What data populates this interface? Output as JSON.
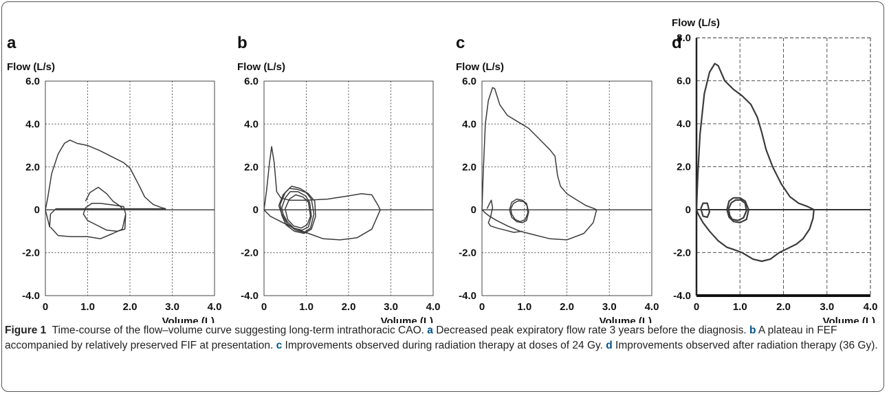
{
  "colors": {
    "line": "#3a3a3a",
    "grid": "#555555",
    "caption_label": "#00558c"
  },
  "chart_data": [
    {
      "type": "line",
      "panel_label": "a",
      "ylabel": "Flow (L/s)",
      "xlabel": "Volume (L)",
      "xlim": [
        0,
        4
      ],
      "ylim": [
        -4,
        6
      ],
      "x_ticks": [
        "0",
        "1.0",
        "2.0",
        "3.0",
        "4.0"
      ],
      "y_ticks": [
        "6.0",
        "4.0",
        "2.0",
        "0",
        "-2.0",
        "-4.0"
      ],
      "grid": "dotted",
      "series": [
        {
          "x": [
            0,
            0.05,
            0.15,
            0.3,
            0.45,
            0.58,
            0.75,
            1.0,
            1.3,
            1.6,
            1.85,
            2.0,
            2.2,
            2.35,
            2.55,
            2.75,
            2.85
          ],
          "y": [
            0,
            0.5,
            1.7,
            2.6,
            3.1,
            3.25,
            3.1,
            3.0,
            2.75,
            2.45,
            2.2,
            1.95,
            1.2,
            0.6,
            0.25,
            0.1,
            0.05
          ]
        },
        {
          "x": [
            2.85,
            2.5,
            2.2,
            2.0,
            1.9,
            1.75,
            1.5,
            1.2,
            0.8,
            0.4,
            0.25,
            0.12,
            0.1,
            0.05,
            0
          ],
          "y": [
            0.05,
            0.05,
            0.05,
            0.05,
            0.05,
            0.05,
            0.05,
            0.05,
            0.05,
            0.05,
            0.05,
            -0.2,
            -0.8,
            -0.4,
            0
          ]
        },
        {
          "x": [
            0.12,
            0.3,
            0.6,
            1.0,
            1.3,
            1.6,
            1.82,
            1.9
          ],
          "y": [
            -0.8,
            -1.2,
            -1.25,
            -1.25,
            -1.35,
            -1.1,
            -0.9,
            -0.2
          ]
        },
        {
          "x": [
            0.95,
            1.1,
            1.3,
            1.5,
            1.7,
            1.85,
            1.9,
            1.88,
            1.7,
            1.45,
            1.2,
            1.0,
            0.9,
            0.95
          ],
          "y": [
            0.1,
            0.3,
            0.3,
            0.25,
            0.2,
            0.15,
            -0.2,
            -0.9,
            -1.0,
            -0.95,
            -0.7,
            -0.5,
            -0.2,
            0.1
          ]
        },
        {
          "x": [
            0.95,
            1.05,
            1.25,
            1.45,
            1.6,
            1.75,
            1.85
          ],
          "y": [
            0.4,
            0.8,
            1.05,
            0.75,
            0.4,
            0.2,
            0
          ]
        }
      ]
    },
    {
      "type": "line",
      "panel_label": "b",
      "ylabel": "Flow (L/s)",
      "xlabel": "Volume (L)",
      "xlim": [
        0,
        4
      ],
      "ylim": [
        -4,
        6
      ],
      "x_ticks": [
        "0",
        "1.0",
        "2.0",
        "3.0",
        "4.0"
      ],
      "y_ticks": [
        "6.0",
        "4.0",
        "2.0",
        "0",
        "-2.0",
        "-4.0"
      ],
      "grid": "dotted",
      "series": [
        {
          "x": [
            0,
            0.06,
            0.13,
            0.18,
            0.24,
            0.3,
            0.4,
            0.6,
            1.0,
            1.5,
            2.0,
            2.3,
            2.55,
            2.7,
            2.75
          ],
          "y": [
            0,
            0.9,
            2.2,
            2.95,
            2.2,
            0.85,
            0.55,
            0.45,
            0.45,
            0.5,
            0.65,
            0.75,
            0.7,
            0.2,
            0
          ]
        },
        {
          "x": [
            2.75,
            2.55,
            2.2,
            1.8,
            1.4,
            1.05,
            0.7,
            0.4,
            0.15,
            0
          ],
          "y": [
            0,
            -0.9,
            -1.3,
            -1.4,
            -1.35,
            -1.1,
            -0.85,
            -0.55,
            -0.3,
            0
          ]
        },
        {
          "x": [
            0.35,
            0.45,
            0.6,
            0.8,
            1.0,
            1.12,
            1.18,
            1.1,
            0.95,
            0.75,
            0.55,
            0.42,
            0.35
          ],
          "y": [
            0.2,
            0.7,
            1.0,
            0.95,
            0.8,
            0.5,
            -0.2,
            -0.85,
            -1.05,
            -0.95,
            -0.65,
            -0.2,
            0.2
          ]
        },
        {
          "x": [
            0.42,
            0.5,
            0.62,
            0.8,
            0.98,
            1.08,
            1.12,
            1.05,
            0.9,
            0.7,
            0.55,
            0.45,
            0.42
          ],
          "y": [
            0.1,
            0.55,
            0.85,
            0.85,
            0.65,
            0.35,
            -0.3,
            -0.8,
            -0.95,
            -0.85,
            -0.55,
            -0.2,
            0.1
          ]
        },
        {
          "x": [
            0.38,
            0.5,
            0.65,
            0.85,
            1.05,
            1.2,
            1.22,
            1.12,
            0.95,
            0.72,
            0.52,
            0.42,
            0.38
          ],
          "y": [
            0.25,
            0.8,
            1.1,
            1.0,
            0.75,
            0.4,
            -0.3,
            -0.9,
            -1.1,
            -1.0,
            -0.7,
            -0.25,
            0.25
          ]
        },
        {
          "x": [
            0.5,
            0.6,
            0.75,
            0.92,
            1.05,
            1.1,
            1.02,
            0.88,
            0.7,
            0.56,
            0.5
          ],
          "y": [
            0.05,
            0.5,
            0.7,
            0.6,
            0.35,
            -0.3,
            -0.7,
            -0.85,
            -0.75,
            -0.45,
            0.05
          ]
        }
      ]
    },
    {
      "type": "line",
      "panel_label": "c",
      "ylabel": "Flow (L/s)",
      "xlabel": "Volume (L)",
      "xlim": [
        0,
        4
      ],
      "ylim": [
        -4,
        6
      ],
      "x_ticks": [
        "0",
        "1.0",
        "2.0",
        "3.0",
        "4.0"
      ],
      "y_ticks": [
        "6.0",
        "4.0",
        "2.0",
        "0",
        "-2.0",
        "-4.0"
      ],
      "grid": "dotted",
      "series": [
        {
          "x": [
            0,
            0.03,
            0.08,
            0.15,
            0.25,
            0.3,
            0.42,
            0.6,
            0.85,
            1.1,
            1.4,
            1.6,
            1.72,
            1.78,
            1.85,
            2.0,
            2.2,
            2.45,
            2.65,
            2.7
          ],
          "y": [
            0,
            1.8,
            4.0,
            5.1,
            5.7,
            5.65,
            4.9,
            4.4,
            4.1,
            3.8,
            3.2,
            2.8,
            2.5,
            1.6,
            1.1,
            0.75,
            0.5,
            0.2,
            0.05,
            0
          ]
        },
        {
          "x": [
            2.7,
            2.62,
            2.4,
            2.0,
            1.6,
            1.2,
            0.9,
            0.6,
            0.35,
            0.18,
            0.08,
            0.03,
            0
          ],
          "y": [
            0,
            -0.6,
            -1.1,
            -1.4,
            -1.35,
            -1.15,
            -1.0,
            -0.75,
            -0.5,
            -0.3,
            -0.15,
            -0.05,
            0
          ]
        },
        {
          "x": [
            0.12,
            0.18,
            0.22,
            0.25,
            0.2,
            0.15,
            0.2,
            0.35,
            0.55,
            0.75,
            0.95
          ],
          "y": [
            0.05,
            0.3,
            0.45,
            0.1,
            -0.35,
            -0.6,
            -0.75,
            -0.85,
            -0.95,
            -1.05,
            -1.0
          ]
        },
        {
          "x": [
            0.65,
            0.7,
            0.82,
            0.95,
            1.05,
            1.1,
            1.05,
            0.95,
            0.82,
            0.7,
            0.65
          ],
          "y": [
            0,
            0.35,
            0.5,
            0.45,
            0.3,
            -0.1,
            -0.5,
            -0.6,
            -0.55,
            -0.35,
            0
          ]
        },
        {
          "x": [
            0.68,
            0.74,
            0.86,
            0.98,
            1.06,
            1.08,
            1.02,
            0.9,
            0.78,
            0.7,
            0.68
          ],
          "y": [
            0.05,
            0.3,
            0.42,
            0.38,
            0.2,
            -0.15,
            -0.45,
            -0.55,
            -0.45,
            -0.2,
            0.05
          ]
        }
      ]
    },
    {
      "type": "line",
      "panel_label": "d",
      "ylabel": "Flow (L/s)",
      "xlabel": "Volume (L)",
      "xlim": [
        0,
        4
      ],
      "ylim": [
        -4,
        8
      ],
      "x_ticks": [
        "0",
        "1.0",
        "2.0",
        "3.0",
        "4.0"
      ],
      "y_ticks": [
        "8.0",
        "6.0",
        "4.0",
        "2.0",
        "0",
        "-2.0",
        "-4.0"
      ],
      "grid": "dashed",
      "series": [
        {
          "x": [
            0,
            0.03,
            0.08,
            0.18,
            0.3,
            0.42,
            0.5,
            0.65,
            0.85,
            1.05,
            1.25,
            1.4,
            1.5,
            1.6,
            1.75,
            1.95,
            2.15,
            2.35,
            2.55,
            2.65,
            2.7
          ],
          "y": [
            0,
            1.6,
            3.5,
            5.4,
            6.4,
            6.8,
            6.7,
            6.0,
            5.6,
            5.3,
            4.9,
            4.3,
            3.6,
            2.8,
            2.0,
            1.2,
            0.6,
            0.3,
            0.15,
            0.05,
            0
          ]
        },
        {
          "x": [
            2.7,
            2.68,
            2.6,
            2.45,
            2.3,
            2.1,
            1.9,
            1.7,
            1.5,
            1.3,
            1.05,
            0.85,
            0.7,
            0.5,
            0.3,
            0.15,
            0.05,
            0
          ],
          "y": [
            0,
            -0.4,
            -0.9,
            -1.35,
            -1.6,
            -1.8,
            -2.0,
            -2.3,
            -2.4,
            -2.3,
            -2.0,
            -1.85,
            -1.75,
            -1.45,
            -1.0,
            -0.6,
            -0.25,
            0
          ]
        },
        {
          "x": [
            0.1,
            0.15,
            0.25,
            0.3,
            0.25,
            0.15,
            0.1
          ],
          "y": [
            0.05,
            0.3,
            0.3,
            -0.1,
            -0.35,
            -0.3,
            0.05
          ]
        },
        {
          "x": [
            0.7,
            0.75,
            0.85,
            1.0,
            1.12,
            1.2,
            1.15,
            1.0,
            0.85,
            0.75,
            0.7
          ],
          "y": [
            0,
            0.4,
            0.55,
            0.55,
            0.4,
            0,
            -0.45,
            -0.6,
            -0.55,
            -0.35,
            0
          ]
        },
        {
          "x": [
            0.74,
            0.8,
            0.9,
            1.02,
            1.12,
            1.15,
            1.08,
            0.95,
            0.82,
            0.76,
            0.74
          ],
          "y": [
            0.05,
            0.32,
            0.45,
            0.45,
            0.3,
            -0.05,
            -0.38,
            -0.5,
            -0.45,
            -0.25,
            0.05
          ]
        }
      ]
    }
  ],
  "caption": {
    "lead": "Figure 1",
    "text": "Time-course of the flow–volume curve suggesting long-term intrathoracic CAO.",
    "items": [
      {
        "label": "a",
        "text": "Decreased peak expiratory flow rate 3 years before the diagnosis."
      },
      {
        "label": "b",
        "text": "A plateau in FEF accompanied by relatively preserved FIF at presentation."
      },
      {
        "label": "c",
        "text": "Improvements observed during radiation therapy at doses of 24 Gy."
      },
      {
        "label": "d",
        "text": "Improvements observed after radiation therapy (36 Gy)."
      }
    ]
  }
}
